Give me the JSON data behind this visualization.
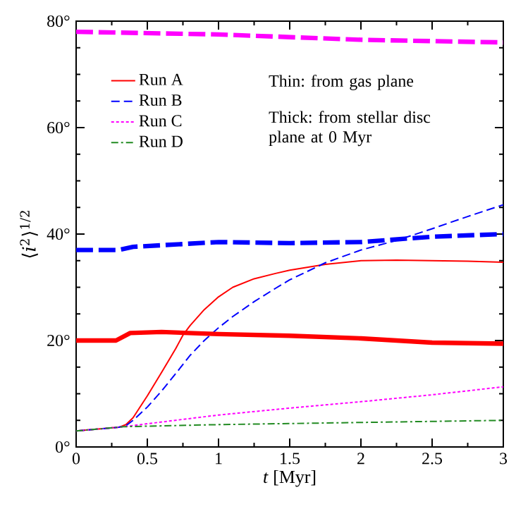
{
  "chart_data": {
    "type": "line",
    "xlabel": "*t* [Myr]",
    "ylabel": "⟨*i*$^{2}$⟩$^{1/2}$",
    "xlim": [
      0,
      3
    ],
    "ylim": [
      0,
      80
    ],
    "xticks": [
      0,
      0.5,
      1,
      1.5,
      2,
      2.5,
      3
    ],
    "yticks": [
      {
        "value": 0,
        "label": "0°"
      },
      {
        "value": 20,
        "label": "20°"
      },
      {
        "value": 40,
        "label": "40°"
      },
      {
        "value": 60,
        "label": "60°"
      },
      {
        "value": 80,
        "label": "80°"
      }
    ],
    "legend": "top left",
    "grid": false,
    "marker": "none",
    "annotations": [
      "Thin: from gas plane",
      "Thick: from stellar disc plane at 0 Myr"
    ],
    "series": [
      {
        "name": "Run A",
        "color": "#ff0000",
        "line_style": "solid",
        "x": [
          0,
          0.3,
          0.35,
          0.4,
          0.5,
          0.6,
          0.7,
          0.75,
          0.8,
          0.9,
          1,
          1.1,
          1.25,
          1.4,
          1.5,
          1.75,
          2,
          2.25,
          2.5,
          2.75,
          3
        ],
        "values": [
          3,
          3.7,
          4.2,
          5.5,
          9.6,
          14,
          18.5,
          21,
          22.8,
          25.8,
          28.2,
          30,
          31.6,
          32.6,
          33.2,
          34.3,
          35,
          35.1,
          35,
          34.9,
          34.7
        ]
      },
      {
        "name": "Run B",
        "color": "#0000ff",
        "line_style": "dashed",
        "x": [
          0,
          0.3,
          0.35,
          0.4,
          0.5,
          0.6,
          0.7,
          0.8,
          0.9,
          1,
          1.1,
          1.25,
          1.4,
          1.5,
          1.75,
          2,
          2.25,
          2.5,
          2.75,
          3
        ],
        "values": [
          3,
          3.7,
          4,
          5,
          7.5,
          10.5,
          13.8,
          17.2,
          20,
          22.4,
          24.5,
          27.3,
          29.8,
          31.4,
          34.6,
          37,
          38.8,
          41,
          43.3,
          45.5
        ]
      },
      {
        "name": "Run C",
        "color": "#ff00ff",
        "line_style": "dotted",
        "x": [
          0,
          0.33,
          1,
          1.5,
          2,
          2.5,
          3
        ],
        "values": [
          3,
          3.8,
          6,
          7.3,
          8.5,
          9.8,
          11.3
        ]
      },
      {
        "name": "Run D",
        "color": "#228b22",
        "line_style": "dashdot",
        "x": [
          0,
          0.33,
          1,
          1.5,
          2,
          2.5,
          3
        ],
        "values": [
          3,
          3.8,
          4.2,
          4.4,
          4.6,
          4.8,
          5
        ]
      },
      {
        "color": "#ff0000",
        "line_style": "solid",
        "x": [
          0,
          0.28,
          0.38,
          0.6,
          1,
          1.5,
          2,
          2.5,
          3
        ],
        "values": [
          20,
          20,
          21.4,
          21.6,
          21.2,
          20.9,
          20.4,
          19.6,
          19.4
        ]
      },
      {
        "color": "#0000ff",
        "line_style": "dashed",
        "x": [
          0,
          0.3,
          0.4,
          1,
          1.5,
          2,
          2.5,
          3
        ],
        "values": [
          37,
          37,
          37.6,
          38.5,
          38.3,
          38.5,
          39.5,
          40
        ]
      },
      {
        "color": "#ff00ff",
        "line_style": "dashed",
        "x": [
          0,
          1,
          2,
          3
        ],
        "values": [
          78,
          77.5,
          76.5,
          76
        ]
      }
    ]
  }
}
